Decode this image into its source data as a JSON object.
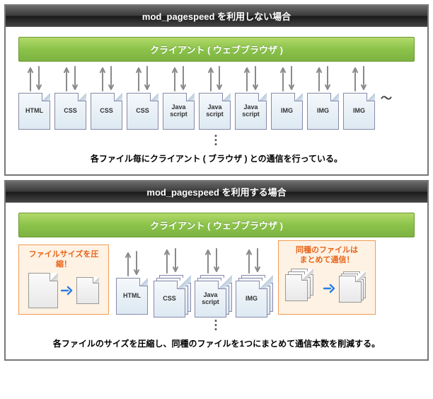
{
  "panels": [
    {
      "title": "mod_pagespeed を利用しない場合",
      "client_label": "クライアント ( ウェブブラウザ )",
      "files": [
        "HTML",
        "CSS",
        "CSS",
        "CSS",
        "Java\nscript",
        "Java\nscript",
        "Java\nscript",
        "IMG",
        "IMG",
        "IMG"
      ],
      "caption": "各ファイル毎にクライアント ( ブラウザ ) との通信を行っている。"
    },
    {
      "title": "mod_pagespeed を利用する場合",
      "client_label": "クライアント ( ウェブブラウザ )",
      "compress_title": "ファイルサイズを圧縮！",
      "group_title": "同種のファイルは\nまとめて通信！",
      "files": [
        "HTML",
        "CSS",
        "Java\nscript",
        "IMG"
      ],
      "caption": "各ファイルのサイズを圧縮し、同種のファイルを1つにまとめて通信本数を削減する。"
    }
  ],
  "colors": {
    "arrow": "#8a8a8a",
    "blue_arrow": "#2a7de1"
  }
}
